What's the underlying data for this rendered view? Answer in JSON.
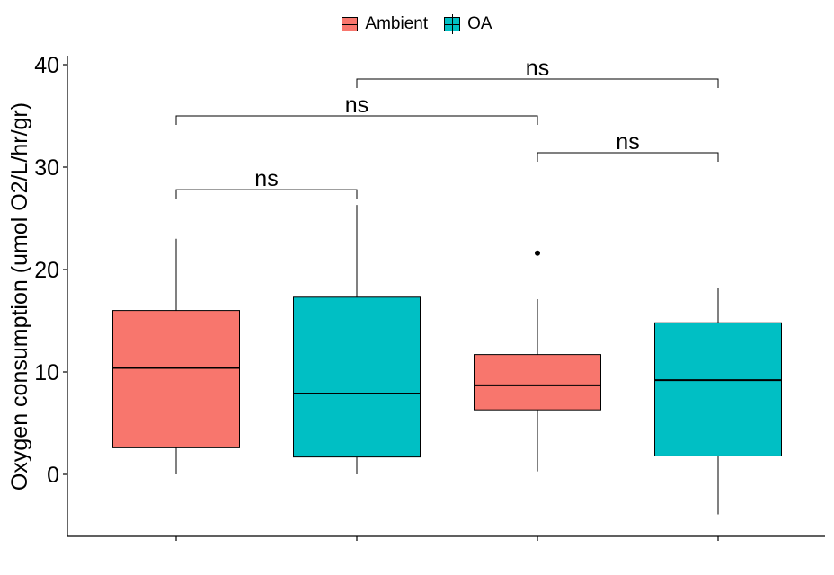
{
  "chart_data": {
    "type": "boxplot",
    "ylabel": "Oxygen consumption (umol O2/L/hr/gr)",
    "ylim": [
      -6,
      41
    ],
    "yticks": [
      0,
      10,
      20,
      30,
      40
    ],
    "legend": {
      "position": "top",
      "items": [
        {
          "name": "Ambient",
          "color": "#F8766D"
        },
        {
          "name": "OA",
          "color": "#00BFC4"
        }
      ]
    },
    "boxes": [
      {
        "group": "Ambient",
        "color": "#F8766D",
        "whisker_low": 0,
        "q1": 2.6,
        "median": 10.4,
        "q3": 16.0,
        "whisker_high": 23.0,
        "outliers": []
      },
      {
        "group": "OA",
        "color": "#00BFC4",
        "whisker_low": 0,
        "q1": 1.7,
        "median": 7.9,
        "q3": 17.3,
        "whisker_high": 26.3,
        "outliers": []
      },
      {
        "group": "Ambient",
        "color": "#F8766D",
        "whisker_low": 0.3,
        "q1": 6.3,
        "median": 8.7,
        "q3": 11.7,
        "whisker_high": 17.1,
        "outliers": [
          21.6
        ]
      },
      {
        "group": "OA",
        "color": "#00BFC4",
        "whisker_low": -3.9,
        "q1": 1.8,
        "median": 9.2,
        "q3": 14.8,
        "whisker_high": 18.2,
        "outliers": []
      }
    ],
    "comparisons": [
      {
        "from": 0,
        "to": 1,
        "y": 27.8,
        "label": "ns"
      },
      {
        "from": 0,
        "to": 2,
        "y": 35.0,
        "label": "ns"
      },
      {
        "from": 2,
        "to": 3,
        "y": 31.4,
        "label": "ns"
      },
      {
        "from": 1,
        "to": 3,
        "y": 38.6,
        "label": "ns"
      }
    ]
  }
}
